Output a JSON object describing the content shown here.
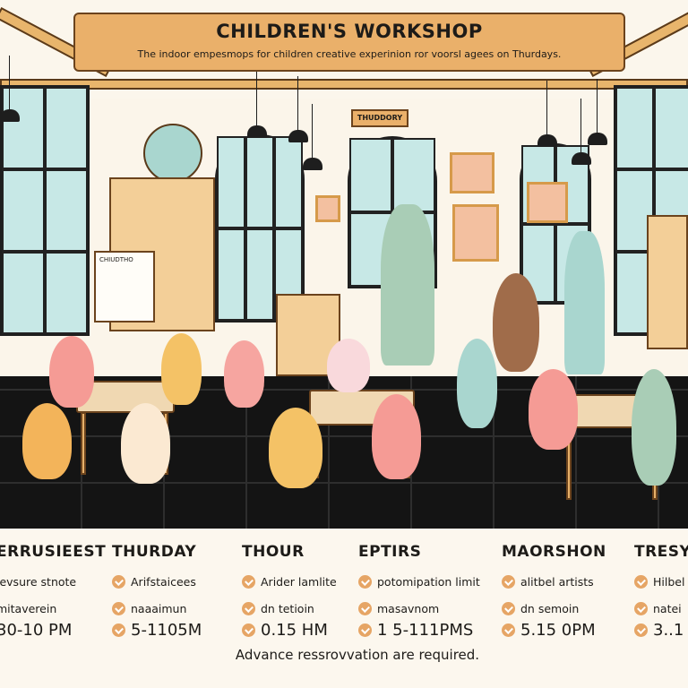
{
  "sign": {
    "title": "CHILDREN'S WORKSHOP",
    "subtitle": "The indoor empesmops for children creative experinion ror voorsl agees on Thurdays."
  },
  "small_sign": "THUDDORY",
  "easel_label": "CHIUDTHO",
  "colors": {
    "wood": "#eab06a",
    "floor": "#141414",
    "window": "#c7e8e6",
    "bullet": "#e6a565",
    "background": "#fcf7ee"
  },
  "columns": [
    {
      "title": "ERRUSIEEST",
      "items": [
        "levsure stnote",
        "mitaverein",
        "30-10 PM"
      ],
      "bullets": false
    },
    {
      "title": "THURDAY",
      "items": [
        "Arifstaicees",
        "naaaimun",
        "5-1105M"
      ],
      "bullets": true
    },
    {
      "title": "THOUR",
      "items": [
        "Arider lamlite",
        "dn tetioin",
        "0.15 HM"
      ],
      "bullets": true
    },
    {
      "title": "EPTIRS",
      "items": [
        "potomipation limit",
        "masavnom",
        "1 5-111PMS"
      ],
      "bullets": true
    },
    {
      "title": "MAORSHON",
      "items": [
        "alitbel artists",
        "dn semoin",
        "5.15 0PM"
      ],
      "bullets": true
    },
    {
      "title": "TRESY",
      "items": [
        "Hilbel",
        "natei",
        "3..1"
      ],
      "bullets": true
    }
  ],
  "footer": "Advance ressrovvation are required."
}
